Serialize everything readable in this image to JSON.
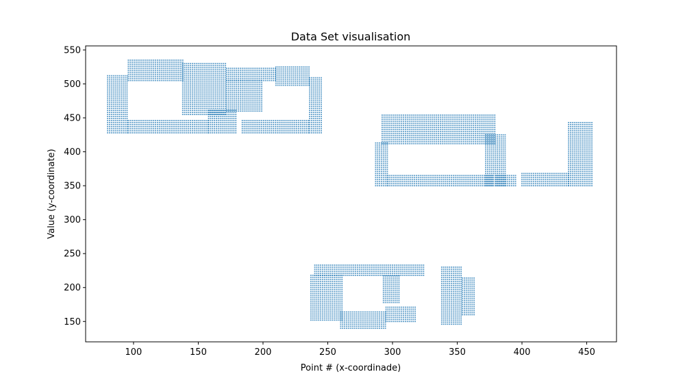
{
  "chart_data": {
    "type": "scatter",
    "title": "Data Set visualisation",
    "xlabel": "Point # (x-coordinade)",
    "ylabel": "Value (y-coordinate)",
    "xlim": [
      63,
      473
    ],
    "ylim": [
      120,
      556
    ],
    "xticks": [
      100,
      150,
      200,
      250,
      300,
      350,
      400,
      450
    ],
    "yticks": [
      150,
      200,
      250,
      300,
      350,
      400,
      450,
      500,
      550
    ],
    "grid": false,
    "color": "#1f77b4",
    "series": [
      {
        "regions": [
          {
            "x": [
              80,
              96
            ],
            "y": [
              428,
              512
            ]
          },
          {
            "x": [
              96,
              158
            ],
            "y": [
              428,
              446
            ]
          },
          {
            "x": [
              96,
              138
            ],
            "y": [
              505,
              536
            ]
          },
          {
            "x": [
              138,
              172
            ],
            "y": [
              455,
              530
            ]
          },
          {
            "x": [
              158,
              180
            ],
            "y": [
              428,
              462
            ]
          },
          {
            "x": [
              172,
              210
            ],
            "y": [
              505,
              525
            ]
          },
          {
            "x": [
              172,
              200
            ],
            "y": [
              460,
              505
            ]
          },
          {
            "x": [
              184,
              236
            ],
            "y": [
              428,
              448
            ]
          },
          {
            "x": [
              236,
              245
            ],
            "y": [
              428,
              510
            ]
          },
          {
            "x": [
              210,
              236
            ],
            "y": [
              498,
              525
            ]
          },
          {
            "x": [
              287,
              296
            ],
            "y": [
              350,
              413
            ]
          },
          {
            "x": [
              296,
              378
            ],
            "y": [
              350,
              365
            ]
          },
          {
            "x": [
              292,
              380
            ],
            "y": [
              412,
              456
            ]
          },
          {
            "x": [
              372,
              388
            ],
            "y": [
              350,
              425
            ]
          },
          {
            "x": [
              380,
              395
            ],
            "y": [
              350,
              365
            ]
          },
          {
            "x": [
              400,
              436
            ],
            "y": [
              350,
              368
            ]
          },
          {
            "x": [
              436,
              454
            ],
            "y": [
              350,
              445
            ]
          },
          {
            "x": [
              240,
              324
            ],
            "y": [
              218,
              233
            ]
          },
          {
            "x": [
              293,
              305
            ],
            "y": [
              178,
              218
            ]
          },
          {
            "x": [
              237,
              262
            ],
            "y": [
              152,
              218
            ]
          },
          {
            "x": [
              260,
              295
            ],
            "y": [
              140,
              165
            ]
          },
          {
            "x": [
              295,
              318
            ],
            "y": [
              150,
              172
            ]
          },
          {
            "x": [
              338,
              354
            ],
            "y": [
              146,
              230
            ]
          },
          {
            "x": [
              354,
              364
            ],
            "y": [
              160,
              215
            ]
          }
        ]
      }
    ]
  }
}
